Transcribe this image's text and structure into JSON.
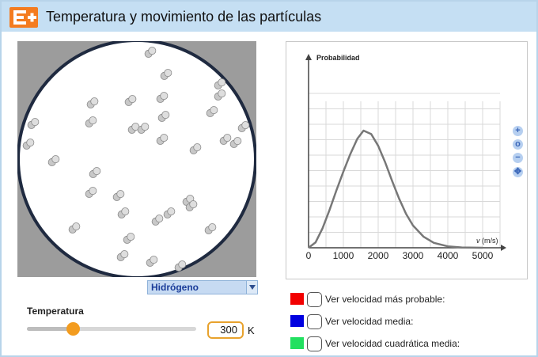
{
  "header": {
    "title": "Temperatura y movimiento de las partículas",
    "logo_icon": "e-plus-logo-icon"
  },
  "simulation": {
    "gas_select": {
      "selected": "Hidrógeno"
    },
    "temperature": {
      "label": "Temperatura",
      "value": "300",
      "unit": "K",
      "slider_fraction": 0.27
    }
  },
  "graph": {
    "zoom_controls": [
      "+",
      "o",
      "−",
      "✥"
    ]
  },
  "chart_data": {
    "type": "line",
    "ylabel": "Probabilidad",
    "xlabel": "v (m/s)",
    "xlim": [
      0,
      5500
    ],
    "x_ticks": [
      "0",
      "1000",
      "2000",
      "3000",
      "4000",
      "5000"
    ],
    "grid": true,
    "series": [
      {
        "x": [
          0,
          200,
          400,
          600,
          800,
          1000,
          1200,
          1400,
          1580,
          1800,
          2000,
          2200,
          2400,
          2600,
          2800,
          3000,
          3300,
          3600,
          4000,
          4400,
          5000
        ],
        "y": [
          0,
          0.045,
          0.165,
          0.32,
          0.49,
          0.65,
          0.8,
          0.93,
          1.0,
          0.97,
          0.87,
          0.73,
          0.57,
          0.42,
          0.29,
          0.19,
          0.095,
          0.042,
          0.012,
          0.003,
          0.0003
        ]
      }
    ]
  },
  "legend": [
    {
      "color": "#f20000",
      "label": "Ver velocidad más probable:"
    },
    {
      "color": "#0000e0",
      "label": "Ver velocidad media:"
    },
    {
      "color": "#22e060",
      "label": "Ver velocidad cuadrática media:"
    }
  ]
}
